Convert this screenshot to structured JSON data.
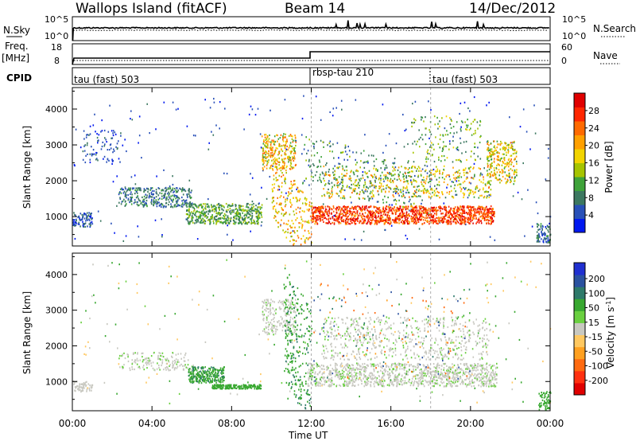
{
  "header": {
    "title": "Wallops Island (fitACF)",
    "beam": "Beam 14",
    "date": "14/Dec/2012"
  },
  "top_panel": {
    "nsky_label": "N.Sky",
    "nsky_tick_high": "10^5",
    "nsky_tick_low": "10^0",
    "nsearch_label": "N.Search",
    "nsearch_tick_high": "10^5",
    "nsearch_tick_low": "10^0",
    "freq_label": "Freq.",
    "freq_unit": "[MHz]",
    "freq_tick_high": "18",
    "freq_tick_low": "8",
    "nave_label": "Nave",
    "nave_tick_high": "60",
    "nave_tick_low": "0",
    "cpid_label": "CPID",
    "cpid_segments": [
      {
        "label": "tau (fast) 503",
        "start_hour": 0
      },
      {
        "label": "rbsp-tau 210",
        "start_hour": 12
      },
      {
        "label": "tau (fast) 503",
        "start_hour": 18
      }
    ]
  },
  "chart_data": [
    {
      "type": "heatmap",
      "title": "",
      "ylabel": "Slant Range [km]",
      "xlabel": "",
      "ylim": [
        180,
        4600
      ],
      "yticks": [
        1000,
        2000,
        3000,
        4000
      ],
      "xlim_hours": [
        0,
        24
      ],
      "colorbar": {
        "label": "Power [dB]",
        "ticks": [
          "4",
          "8",
          "12",
          "16",
          "20",
          "24",
          "28"
        ],
        "range": [
          0,
          30
        ],
        "colors": [
          "#0018f0",
          "#2850b8",
          "#3c7860",
          "#3fa33a",
          "#a6c400",
          "#f2d400",
          "#ffa000",
          "#ff6a00",
          "#ff2600",
          "#e00000"
        ]
      },
      "features": [
        {
          "name": "morning band",
          "hours": [
            2.5,
            6.0
          ],
          "range_km": [
            1200,
            1700
          ],
          "level_db": 8
        },
        {
          "name": "morning patch",
          "hours": [
            5.7,
            9.5
          ],
          "range_km": [
            750,
            1350
          ],
          "level_db": 12
        },
        {
          "name": "pre-noon arc",
          "hours": [
            10.0,
            12.0
          ],
          "range_km": [
            1400,
            3200
          ],
          "level_db": 22
        },
        {
          "name": "afternoon band",
          "hours": [
            12.0,
            21.2
          ],
          "range_km": [
            750,
            1250
          ],
          "level_db": 26
        },
        {
          "name": "evening arc",
          "hours": [
            20.8,
            22.3
          ],
          "range_km": [
            1800,
            3100
          ],
          "level_db": 18
        }
      ]
    },
    {
      "type": "heatmap",
      "title": "",
      "ylabel": "Slant Range [km]",
      "xlabel": "Time UT",
      "ylim": [
        180,
        4600
      ],
      "yticks": [
        1000,
        2000,
        3000,
        4000
      ],
      "xticks": [
        "00:00",
        "04:00",
        "08:00",
        "12:00",
        "16:00",
        "20:00",
        "00:00"
      ],
      "colorbar": {
        "label": "Velocity [m s^-1]",
        "ticks": [
          "200",
          "100",
          "50",
          "15",
          "-15",
          "-50",
          "-100",
          "-200"
        ],
        "colors": [
          "#2030d0",
          "#2b52a0",
          "#2e7a6a",
          "#38a830",
          "#6ad040",
          "#c8c8c0",
          "#ffc860",
          "#ffa020",
          "#ff6a10",
          "#ff3010",
          "#e00000"
        ]
      },
      "features": [
        {
          "name": "ground scatter band",
          "hours": [
            11.8,
            21.5
          ],
          "range_km": [
            900,
            2900
          ],
          "velocity": 0
        },
        {
          "name": "green patch",
          "hours": [
            5.8,
            7.8
          ],
          "range_km": [
            950,
            1400
          ],
          "velocity": 40
        },
        {
          "name": "green streak",
          "hours": [
            10.6,
            12.0
          ],
          "range_km": [
            1000,
            4400
          ],
          "velocity": 45
        }
      ]
    }
  ]
}
